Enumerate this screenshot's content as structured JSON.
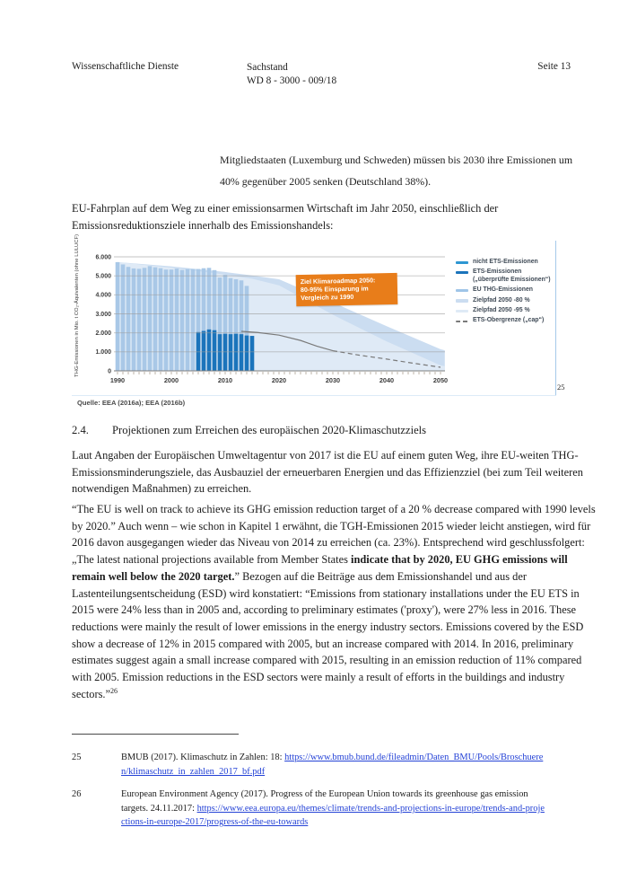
{
  "header": {
    "left": "Wissenschaftliche Dienste",
    "center_line1": "Sachstand",
    "center_line2": "WD 8 - 3000 - 009/18",
    "right": "Seite 13"
  },
  "quote": "Mitgliedstaaten (Luxemburg und Schweden) müssen bis 2030 ihre Emissionen um 40% gegenüber 2005 senken (Deutschland 38%).",
  "intro": "EU-Fahrplan auf dem Weg zu einer emissionsarmen Wirtschaft im Jahr 2050, einschließlich der Emissionsreduktionsziele innerhalb des Emissionshandels:",
  "figure_footnote_ref": "25",
  "section": {
    "number": "2.4.",
    "title": "Projektionen zum Erreichen des europäischen 2020-Klimaschutzziels"
  },
  "para1": "Laut Angaben der Europäischen Umweltagentur von 2017 ist die EU auf einem guten Weg, ihre EU-weiten THG-Emissionsminderungsziele, das Ausbauziel der erneuerbaren Energien und das Effizienzziel (bei zum Teil weiteren notwendigen Maßnahmen) zu erreichen.",
  "para2": [
    {
      "t": "“The EU is well on track to achieve its GHG emission reduction target of a 20 % decrease compared with 1990 levels by 2020.” Auch wenn – wie schon in Kapitel 1 erwähnt, die TGH-Emissionen 2015 wieder leicht anstiegen, wird für 2016 davon ausgegangen wieder das Niveau von 2014 zu erreichen (ca. 23%). Entsprechend wird geschlussfolgert: „The latest national projections available from Member States "
    },
    {
      "t": "indicate that by 2020, EU GHG emissions will remain well below the 2020 target.",
      "b": true
    },
    {
      "t": "” Bezogen auf die Beiträge aus dem Emissionshandel und aus der Lastenteilungsentscheidung (ESD) wird konstatiert: “Emissions from stationary installations under the EU ETS in 2015 were 24% less than in 2005 and, according to preliminary estimates ('proxy'), were 27% less in 2016. These reductions were mainly the result of lower emissions in the energy industry sectors. Emissions covered by the ESD show a decrease of 12% in 2015 compared with 2005, but an increase compared with 2014. In 2016, preliminary estimates suggest again a small increase compared with 2015, resulting in an emission reduction of 11% compared with 2005. Emission reductions in the ESD sectors were mainly a result of efforts in the buildings and industry sectors.”"
    },
    {
      "sup": "26"
    }
  ],
  "footnotes": [
    {
      "num": "25",
      "parts": [
        {
          "t": "BMUB (2017). Klimaschutz in Zahlen: 18: "
        },
        {
          "t": "https://www.bmub.bund.de/fileadmin/Daten_BMU/Pools/Broschueren/klimaschutz_in_zahlen_2017_bf.pdf",
          "link": true
        }
      ]
    },
    {
      "num": "26",
      "parts": [
        {
          "t": "European Environment Agency (2017). Progress of the European Union towards its greenhouse gas emission targets. 24.11.2017: "
        },
        {
          "t": "https://www.eea.europa.eu/themes/climate/trends-and-projections-in-europe/trends-and-projections-in-europe-2017/progress-of-the-eu-towards",
          "link": true
        }
      ]
    }
  ],
  "chart_data": {
    "type": "bar+area+line combo",
    "ylabel": "THG-Emissionen in Mio. t CO₂-Äquivalenten (ohne LULUCF)",
    "ylim": [
      0,
      6000
    ],
    "xlim": [
      1990,
      2051
    ],
    "yticks": [
      {
        "v": 0,
        "label": "0"
      },
      {
        "v": 1000,
        "label": "1.000"
      },
      {
        "v": 2000,
        "label": "2.000"
      },
      {
        "v": 3000,
        "label": "3.000"
      },
      {
        "v": 4000,
        "label": "4.000"
      },
      {
        "v": 5000,
        "label": "5.000"
      },
      {
        "v": 6000,
        "label": "6.000"
      }
    ],
    "xticks": [
      {
        "v": 1990,
        "label": "1990"
      },
      {
        "v": 2000,
        "label": "2000"
      },
      {
        "v": 2010,
        "label": "2010"
      },
      {
        "v": 2020,
        "label": "2020"
      },
      {
        "v": 2030,
        "label": "2030"
      },
      {
        "v": 2040,
        "label": "2040"
      },
      {
        "v": 2050,
        "label": "2050"
      }
    ],
    "series": [
      {
        "name": "Zielpfad 2050 -80 %",
        "type": "area",
        "color": "#cbddf1",
        "points": [
          [
            1990,
            5720
          ],
          [
            2000,
            5500
          ],
          [
            2010,
            5200
          ],
          [
            2015,
            5020
          ],
          [
            2020,
            4820
          ],
          [
            2030,
            3600
          ],
          [
            2040,
            2350
          ],
          [
            2050,
            1140
          ],
          [
            2050.8,
            1080
          ]
        ]
      },
      {
        "name": "Zielpfad 2050 -95 %",
        "type": "area",
        "color": "#dfeaf6",
        "points": [
          [
            1990,
            5720
          ],
          [
            2000,
            5430
          ],
          [
            2010,
            5060
          ],
          [
            2015,
            4850
          ],
          [
            2020,
            4500
          ],
          [
            2030,
            2950
          ],
          [
            2040,
            1550
          ],
          [
            2050,
            290
          ],
          [
            2050.8,
            250
          ]
        ]
      },
      {
        "name": "EU THG-Emissionen",
        "type": "bar",
        "color": "#a9c8e7",
        "start_year": 1990,
        "values": [
          5720,
          5600,
          5470,
          5390,
          5370,
          5420,
          5510,
          5450,
          5400,
          5330,
          5330,
          5380,
          5310,
          5360,
          5350,
          5360,
          5400,
          5420,
          5300,
          4910,
          5050,
          4880,
          4820,
          4760,
          4470
        ]
      },
      {
        "name": "ETS-Emissionen („überprüfte Emissionen“)",
        "type": "bar",
        "color": "#1b74bb",
        "start_year": 2005,
        "values": [
          2040,
          2100,
          2180,
          2140,
          1930,
          1950,
          1930,
          1950,
          1930,
          1860,
          1840
        ]
      },
      {
        "name": "ETS-Obergrenze („cap“)",
        "type": "line",
        "color": "#7a7a7a",
        "solid": [
          [
            2013,
            2080
          ],
          [
            2016,
            2020
          ],
          [
            2020,
            1880
          ],
          [
            2024,
            1600
          ],
          [
            2027,
            1300
          ],
          [
            2030,
            1060
          ]
        ],
        "dashed": [
          [
            2030,
            1060
          ],
          [
            2035,
            820
          ],
          [
            2040,
            620
          ],
          [
            2045,
            400
          ],
          [
            2050,
            190
          ]
        ]
      }
    ],
    "legend": [
      {
        "label": "nicht ETS-Emissionen",
        "color": "#2e96d2",
        "style": "bar"
      },
      {
        "label": "ETS-Emissionen\n(„überprüfte Emissionen“)",
        "color": "#1b74bb",
        "style": "bar"
      },
      {
        "label": "EU THG-Emissionen",
        "color": "#9fc5e8",
        "style": "bar"
      },
      {
        "label": "Zielpfad 2050 -80 %",
        "color": "#cbddf1",
        "style": "bar"
      },
      {
        "label": "Zielpfad 2050 -95 %",
        "color": "#dfeaf6",
        "style": "bar"
      },
      {
        "label": "ETS-Obergrenze („cap“)",
        "color": "#7a7a7a",
        "style": "line"
      }
    ],
    "annotation": "Ziel Klimaroadmap 2050:\n80-95% Einsparung im\nVergleich zu 1990",
    "source": "Quelle: EEA (2016a); EEA (2016b)",
    "grid": true,
    "legend_position": "right"
  }
}
